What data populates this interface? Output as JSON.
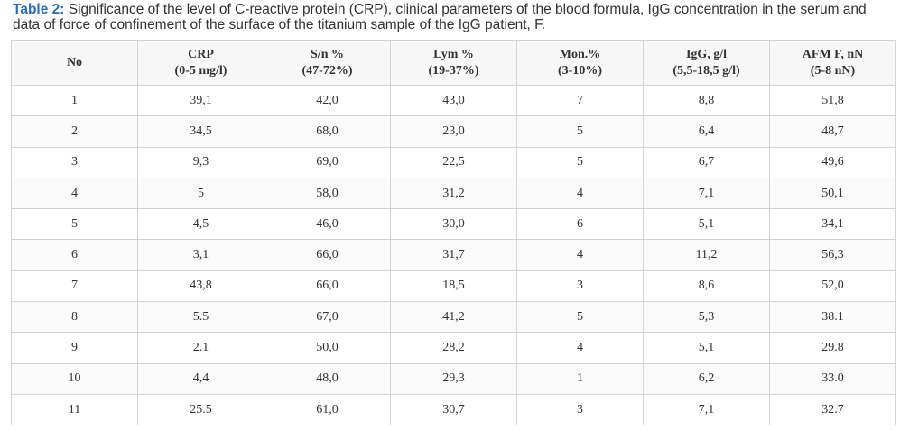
{
  "caption": {
    "label": "Table 2:",
    "text": "Significance of the level of C-reactive protein (CRP), clinical parameters of the blood formula, IgG concentration in the serum and data of force of confinement of the surface of the titanium sample of the IgG patient, F."
  },
  "table": {
    "header": [
      [
        "No"
      ],
      [
        "CRP",
        "(0-5 mg/l)"
      ],
      [
        "S/n %",
        "(47-72%)"
      ],
      [
        "Lym %",
        "(19-37%)"
      ],
      [
        "Mon.%",
        "(3-10%)"
      ],
      [
        "IgG, g/l",
        "(5,5-18,5 g/l)"
      ],
      [
        "AFM F, nN",
        "(5-8 nN)"
      ]
    ],
    "rows": [
      [
        "1",
        "39,1",
        "42,0",
        "43,0",
        "7",
        "8,8",
        "51,8"
      ],
      [
        "2",
        "34,5",
        "68,0",
        "23,0",
        "5",
        "6,4",
        "48,7"
      ],
      [
        "3",
        "9,3",
        "69,0",
        "22,5",
        "5",
        "6,7",
        "49,6"
      ],
      [
        "4",
        "5",
        "58,0",
        "31,2",
        "4",
        "7,1",
        "50,1"
      ],
      [
        "5",
        "4,5",
        "46,0",
        "30,0",
        "6",
        "5,1",
        "34,1"
      ],
      [
        "6",
        "3,1",
        "66,0",
        "31,7",
        "4",
        "11,2",
        "56,3"
      ],
      [
        "7",
        "43,8",
        "66,0",
        "18,5",
        "3",
        "8,6",
        "52,0"
      ],
      [
        "8",
        "5.5",
        "67,0",
        "41,2",
        "5",
        "5,3",
        "38.1"
      ],
      [
        "9",
        "2.1",
        "50,0",
        "28,2",
        "4",
        "5,1",
        "29.8"
      ],
      [
        "10",
        "4,4",
        "48,0",
        "29,3",
        "1",
        "6,2",
        "33.0"
      ],
      [
        "11",
        "25.5",
        "61,0",
        "30,7",
        "3",
        "7,1",
        "32.7"
      ]
    ]
  }
}
